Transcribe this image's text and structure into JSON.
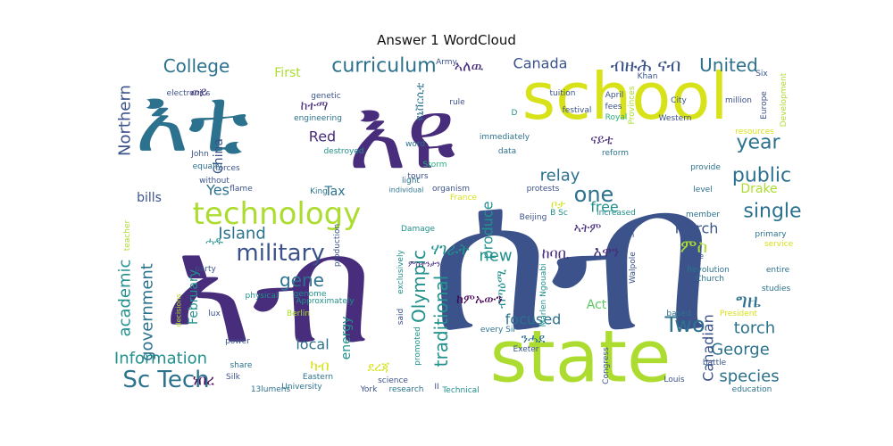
{
  "chart_data": {
    "type": "wordcloud",
    "title": "Answer 1 WordCloud",
    "colors": [
      "#3b528b",
      "#472d7b",
      "#440154",
      "#2c728e",
      "#21918c",
      "#28ae80",
      "#5ec962",
      "#addc30",
      "#d8e219"
    ],
    "words": [
      {
        "text": "ሰብ",
        "weight": 1.0,
        "color": "#3b528b"
      },
      {
        "text": "እዩ",
        "weight": 0.9,
        "color": "#472d7b"
      },
      {
        "text": "ኣብ",
        "weight": 0.95,
        "color": "#472d7b"
      },
      {
        "text": "school",
        "weight": 0.55,
        "color": "#d8e219"
      },
      {
        "text": "state",
        "weight": 0.6,
        "color": "#addc30"
      },
      {
        "text": "እቲ",
        "weight": 0.7,
        "color": "#2c728e"
      },
      {
        "text": "technology",
        "weight": 0.22,
        "color": "#addc30"
      },
      {
        "text": "curriculum",
        "weight": 0.15,
        "color": "#2c728e"
      },
      {
        "text": "military",
        "weight": 0.17,
        "color": "#3b528b"
      },
      {
        "text": "Sc Tech",
        "weight": 0.18,
        "color": "#2c728e"
      },
      {
        "text": "Two",
        "weight": 0.17,
        "color": "#2c728e"
      },
      {
        "text": "year",
        "weight": 0.16,
        "color": "#2c728e"
      },
      {
        "text": "one",
        "weight": 0.16,
        "color": "#2c728e"
      },
      {
        "text": "single",
        "weight": 0.15,
        "color": "#2c728e"
      },
      {
        "text": "public",
        "weight": 0.14,
        "color": "#2c728e"
      },
      {
        "text": "College",
        "weight": 0.13,
        "color": "#2c728e"
      },
      {
        "text": "United",
        "weight": 0.13,
        "color": "#2c728e"
      },
      {
        "text": "ብዙሕ ናብ",
        "weight": 0.13,
        "color": "#3b528b"
      },
      {
        "text": "gene",
        "weight": 0.14,
        "color": "#2c728e"
      },
      {
        "text": "Island",
        "weight": 0.12,
        "color": "#2c728e"
      },
      {
        "text": "Information",
        "weight": 0.12,
        "color": "#21918c"
      },
      {
        "text": "George",
        "weight": 0.13,
        "color": "#2c728e"
      },
      {
        "text": "species",
        "weight": 0.12,
        "color": "#2c728e"
      },
      {
        "text": "torch",
        "weight": 0.12,
        "color": "#2c728e"
      },
      {
        "text": "Olympic",
        "weight": 0.13,
        "color": "#21918c"
      },
      {
        "text": "traditional",
        "weight": 0.13,
        "color": "#21918c"
      },
      {
        "text": "government",
        "weight": 0.12,
        "color": "#2c728e"
      },
      {
        "text": "academic",
        "weight": 0.13,
        "color": "#21918c"
      },
      {
        "text": "Northern",
        "weight": 0.12,
        "color": "#3b528b"
      },
      {
        "text": "Canadian",
        "weight": 0.12,
        "color": "#3b528b"
      },
      {
        "text": "Canada",
        "weight": 0.1,
        "color": "#3b528b"
      },
      {
        "text": "produce",
        "weight": 0.1,
        "color": "#21918c"
      },
      {
        "text": "focused",
        "weight": 0.1,
        "color": "#2c728e"
      },
      {
        "text": "relay",
        "weight": 0.1,
        "color": "#2c728e"
      },
      {
        "text": "free",
        "weight": 0.1,
        "color": "#21918c"
      },
      {
        "text": "new",
        "weight": 0.1,
        "color": "#21918c"
      },
      {
        "text": "March",
        "weight": 0.1,
        "color": "#3b528b"
      },
      {
        "text": "Red",
        "weight": 0.1,
        "color": "#472d7b"
      },
      {
        "text": "Yes",
        "weight": 0.1,
        "color": "#2c728e"
      },
      {
        "text": "local",
        "weight": 0.09,
        "color": "#2c728e"
      },
      {
        "text": "energy",
        "weight": 0.09,
        "color": "#21918c"
      },
      {
        "text": "February",
        "weight": 0.09,
        "color": "#21918c"
      },
      {
        "text": "China",
        "weight": 0.08,
        "color": "#3b528b"
      },
      {
        "text": "First",
        "weight": 0.08,
        "color": "#addc30"
      },
      {
        "text": "bills",
        "weight": 0.08,
        "color": "#3b528b"
      },
      {
        "text": "Tax",
        "weight": 0.08,
        "color": "#2c728e"
      },
      {
        "text": "Drake",
        "weight": 0.08,
        "color": "#addc30"
      },
      {
        "text": "Act",
        "weight": 0.08,
        "color": "#5ec962"
      },
      {
        "text": "ምስ",
        "weight": 0.1,
        "color": "#addc30"
      },
      {
        "text": "ግዜ",
        "weight": 0.1,
        "color": "#2c728e"
      },
      {
        "text": "ኣለዉ",
        "weight": 0.08,
        "color": "#472d7b"
      },
      {
        "text": "ከተማ",
        "weight": 0.08,
        "color": "#472d7b"
      },
      {
        "text": "ወይ",
        "weight": 0.08,
        "color": "#472d7b"
      },
      {
        "text": "ናይቲ",
        "weight": 0.08,
        "color": "#472d7b"
      },
      {
        "text": "ሃገራት",
        "weight": 0.09,
        "color": "#21918c"
      },
      {
        "text": "ከባቢ",
        "weight": 0.08,
        "color": "#472d7b"
      },
      {
        "text": "እዋን",
        "weight": 0.08,
        "color": "#472d7b"
      },
      {
        "text": "ካብ",
        "weight": 0.08,
        "color": "#d8e219"
      },
      {
        "text": "ነበረ",
        "weight": 0.08,
        "color": "#440154"
      },
      {
        "text": "ብጣዕሚ",
        "weight": 0.07,
        "color": "#21918c"
      },
      {
        "text": "ከምኡውን",
        "weight": 0.07,
        "color": "#440154"
      },
      {
        "text": "ኣትም",
        "weight": 0.07,
        "color": "#472d7b"
      },
      {
        "text": "ደረጃ",
        "weight": 0.07,
        "color": "#d8e219"
      },
      {
        "text": "ንሓደ",
        "weight": 0.07,
        "color": "#2c728e"
      },
      {
        "text": "ዩኒቨርሲቲ",
        "weight": 0.07,
        "color": "#2c728e"
      },
      {
        "text": "ሓዱ",
        "weight": 0.07,
        "color": "#21918c"
      },
      {
        "text": "ምስትንታን",
        "weight": 0.06,
        "color": "#472d7b"
      },
      {
        "text": "ቦታ",
        "weight": 0.06,
        "color": "#d8e219"
      },
      {
        "text": "Marlen Ngouabi",
        "weight": 0.03,
        "color": "#21918c"
      },
      {
        "text": "Revolution",
        "weight": 0.03,
        "color": "#2c728e"
      },
      {
        "text": "engineering",
        "weight": 0.03,
        "color": "#2c728e"
      },
      {
        "text": "Approximately",
        "weight": 0.03,
        "color": "#21918c"
      },
      {
        "text": "immediately",
        "weight": 0.03,
        "color": "#2c728e"
      },
      {
        "text": "production",
        "weight": 0.03,
        "color": "#3b528b"
      },
      {
        "text": "organism",
        "weight": 0.03,
        "color": "#3b528b"
      },
      {
        "text": "individual",
        "weight": 0.03,
        "color": "#2c728e"
      },
      {
        "text": "research",
        "weight": 0.03,
        "color": "#2c728e"
      },
      {
        "text": "education",
        "weight": 0.03,
        "color": "#2c728e"
      },
      {
        "text": "University",
        "weight": 0.03,
        "color": "#2c728e"
      },
      {
        "text": "science",
        "weight": 0.03,
        "color": "#3b528b"
      },
      {
        "text": "studies",
        "weight": 0.03,
        "color": "#2c728e"
      },
      {
        "text": "primary",
        "weight": 0.03,
        "color": "#2c728e"
      },
      {
        "text": "provide",
        "weight": 0.03,
        "color": "#2c728e"
      },
      {
        "text": "Church",
        "weight": 0.03,
        "color": "#2c728e"
      },
      {
        "text": "battle",
        "weight": 0.03,
        "color": "#3b528b"
      },
      {
        "text": "Louis",
        "weight": 0.03,
        "color": "#3b528b"
      },
      {
        "text": "entire",
        "weight": 0.03,
        "color": "#2c728e"
      },
      {
        "text": "based",
        "weight": 0.03,
        "color": "#2c728e"
      },
      {
        "text": "power",
        "weight": 0.03,
        "color": "#3b528b"
      },
      {
        "text": "share",
        "weight": 0.03,
        "color": "#2c728e"
      },
      {
        "text": "party",
        "weight": 0.03,
        "color": "#3b528b"
      },
      {
        "text": "forces",
        "weight": 0.03,
        "color": "#3b528b"
      },
      {
        "text": "equally",
        "weight": 0.03,
        "color": "#2c728e"
      },
      {
        "text": "without",
        "weight": 0.03,
        "color": "#3b528b"
      },
      {
        "text": "flame",
        "weight": 0.03,
        "color": "#3b528b"
      },
      {
        "text": "King",
        "weight": 0.03,
        "color": "#2c728e"
      },
      {
        "text": "destroyed",
        "weight": 0.03,
        "color": "#21918c"
      },
      {
        "text": "genetic",
        "weight": 0.03,
        "color": "#3b528b"
      },
      {
        "text": "rule",
        "weight": 0.03,
        "color": "#3b528b"
      },
      {
        "text": "word",
        "weight": 0.03,
        "color": "#2c728e"
      },
      {
        "text": "data",
        "weight": 0.03,
        "color": "#2c728e"
      },
      {
        "text": "tours",
        "weight": 0.03,
        "color": "#3b528b"
      },
      {
        "text": "light",
        "weight": 0.03,
        "color": "#2c728e"
      },
      {
        "text": "Storm",
        "weight": 0.03,
        "color": "#28ae80"
      },
      {
        "text": "reform",
        "weight": 0.03,
        "color": "#2c728e"
      },
      {
        "text": "City",
        "weight": 0.03,
        "color": "#3b528b"
      },
      {
        "text": "fees",
        "weight": 0.03,
        "color": "#3b528b"
      },
      {
        "text": "tuition",
        "weight": 0.03,
        "color": "#3b528b"
      },
      {
        "text": "festival",
        "weight": 0.03,
        "color": "#3b528b"
      },
      {
        "text": "April",
        "weight": 0.03,
        "color": "#3b528b"
      },
      {
        "text": "Royal",
        "weight": 0.03,
        "color": "#28ae80"
      },
      {
        "text": "Western",
        "weight": 0.03,
        "color": "#3b528b"
      },
      {
        "text": "million",
        "weight": 0.03,
        "color": "#3b528b"
      },
      {
        "text": "Khan",
        "weight": 0.03,
        "color": "#3b528b"
      },
      {
        "text": "Six",
        "weight": 0.03,
        "color": "#3b528b"
      },
      {
        "text": "Europe",
        "weight": 0.03,
        "color": "#3b528b"
      },
      {
        "text": "Development",
        "weight": 0.03,
        "color": "#addc30"
      },
      {
        "text": "resources",
        "weight": 0.03,
        "color": "#d8e219"
      },
      {
        "text": "Provinces",
        "weight": 0.03,
        "color": "#addc30"
      },
      {
        "text": "level",
        "weight": 0.03,
        "color": "#2c728e"
      },
      {
        "text": "member",
        "weight": 0.03,
        "color": "#2c728e"
      },
      {
        "text": "High",
        "weight": 0.03,
        "color": "#3b528b"
      },
      {
        "text": "type",
        "weight": 0.03,
        "color": "#3b528b"
      },
      {
        "text": "Walpole",
        "weight": 0.03,
        "color": "#3b528b"
      },
      {
        "text": "increased",
        "weight": 0.03,
        "color": "#21918c"
      },
      {
        "text": "protests",
        "weight": 0.03,
        "color": "#3b528b"
      },
      {
        "text": "Beijing",
        "weight": 0.03,
        "color": "#3b528b"
      },
      {
        "text": "France",
        "weight": 0.03,
        "color": "#d8e219"
      },
      {
        "text": "Damage",
        "weight": 0.03,
        "color": "#21918c"
      },
      {
        "text": "exclusively",
        "weight": 0.03,
        "color": "#21918c"
      },
      {
        "text": "promoted",
        "weight": 0.03,
        "color": "#21918c"
      },
      {
        "text": "said",
        "weight": 0.03,
        "color": "#3b528b"
      },
      {
        "text": "every Sir",
        "weight": 0.03,
        "color": "#2c728e"
      },
      {
        "text": "Exeter",
        "weight": 0.03,
        "color": "#3b528b"
      },
      {
        "text": "York",
        "weight": 0.03,
        "color": "#3b528b"
      },
      {
        "text": "II",
        "weight": 0.03,
        "color": "#3b528b"
      },
      {
        "text": "Technical",
        "weight": 0.03,
        "color": "#21918c"
      },
      {
        "text": "Congress",
        "weight": 0.03,
        "color": "#3b528b"
      },
      {
        "text": "President",
        "weight": 0.03,
        "color": "#d8e219"
      },
      {
        "text": "service",
        "weight": 0.03,
        "color": "#d8e219"
      },
      {
        "text": "Eastern",
        "weight": 0.03,
        "color": "#2c728e"
      },
      {
        "text": "Silk",
        "weight": 0.03,
        "color": "#3b528b"
      },
      {
        "text": "Berlin",
        "weight": 0.03,
        "color": "#addc30"
      },
      {
        "text": "13lumens",
        "weight": 0.03,
        "color": "#2c728e"
      },
      {
        "text": "physical",
        "weight": 0.03,
        "color": "#21918c"
      },
      {
        "text": "lux",
        "weight": 0.03,
        "color": "#3b528b"
      },
      {
        "text": "decisions",
        "weight": 0.03,
        "color": "#addc30"
      },
      {
        "text": "genome",
        "weight": 0.03,
        "color": "#21918c"
      },
      {
        "text": "teacher",
        "weight": 0.03,
        "color": "#addc30"
      },
      {
        "text": "John",
        "weight": 0.03,
        "color": "#3b528b"
      },
      {
        "text": "electronics",
        "weight": 0.03,
        "color": "#3b528b"
      },
      {
        "text": "Army",
        "weight": 0.03,
        "color": "#3b528b"
      },
      {
        "text": "D",
        "weight": 0.03,
        "color": "#21918c"
      },
      {
        "text": "B Sc",
        "weight": 0.03,
        "color": "#21918c"
      }
    ]
  }
}
